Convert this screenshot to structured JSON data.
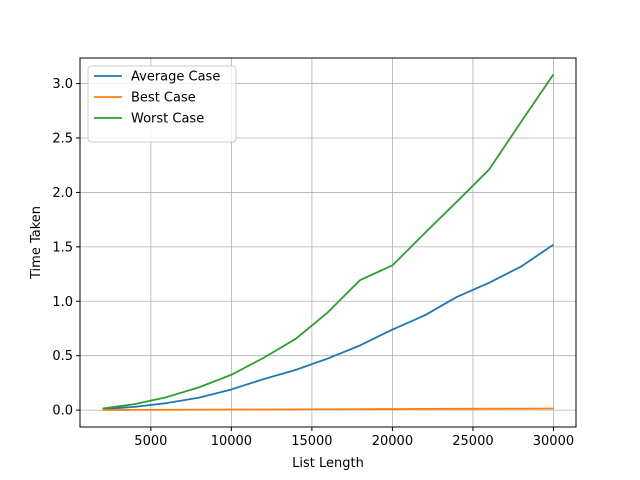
{
  "chart_data": {
    "type": "line",
    "title": "",
    "xlabel": "List Length",
    "ylabel": "Time Taken",
    "xlim": [
      600,
      31400
    ],
    "ylim": [
      -0.155,
      3.235
    ],
    "xticks": [
      5000,
      10000,
      15000,
      20000,
      25000,
      30000
    ],
    "xtick_labels": [
      "5000",
      "10000",
      "15000",
      "20000",
      "25000",
      "30000"
    ],
    "yticks": [
      0.0,
      0.5,
      1.0,
      1.5,
      2.0,
      2.5,
      3.0
    ],
    "ytick_labels": [
      "0.0",
      "0.5",
      "1.0",
      "1.5",
      "2.0",
      "2.5",
      "3.0"
    ],
    "grid": true,
    "legend_position": "top-left",
    "x": [
      2000,
      4000,
      6000,
      8000,
      10000,
      12000,
      14000,
      16000,
      18000,
      20000,
      22000,
      24000,
      26000,
      28000,
      30000
    ],
    "series": [
      {
        "name": "Average Case",
        "color": "#1f77b4",
        "values": [
          0.01,
          0.03,
          0.065,
          0.115,
          0.19,
          0.285,
          0.37,
          0.475,
          0.595,
          0.74,
          0.87,
          1.04,
          1.17,
          1.32,
          1.52
        ]
      },
      {
        "name": "Best Case",
        "color": "#ff7f0e",
        "values": [
          0.001,
          0.002,
          0.003,
          0.004,
          0.005,
          0.006,
          0.007,
          0.008,
          0.009,
          0.01,
          0.011,
          0.012,
          0.013,
          0.014,
          0.015
        ]
      },
      {
        "name": "Worst Case",
        "color": "#2ca02c",
        "values": [
          0.015,
          0.055,
          0.12,
          0.21,
          0.325,
          0.48,
          0.655,
          0.9,
          1.195,
          1.33,
          1.625,
          1.915,
          2.21,
          2.65,
          3.085
        ]
      }
    ]
  }
}
